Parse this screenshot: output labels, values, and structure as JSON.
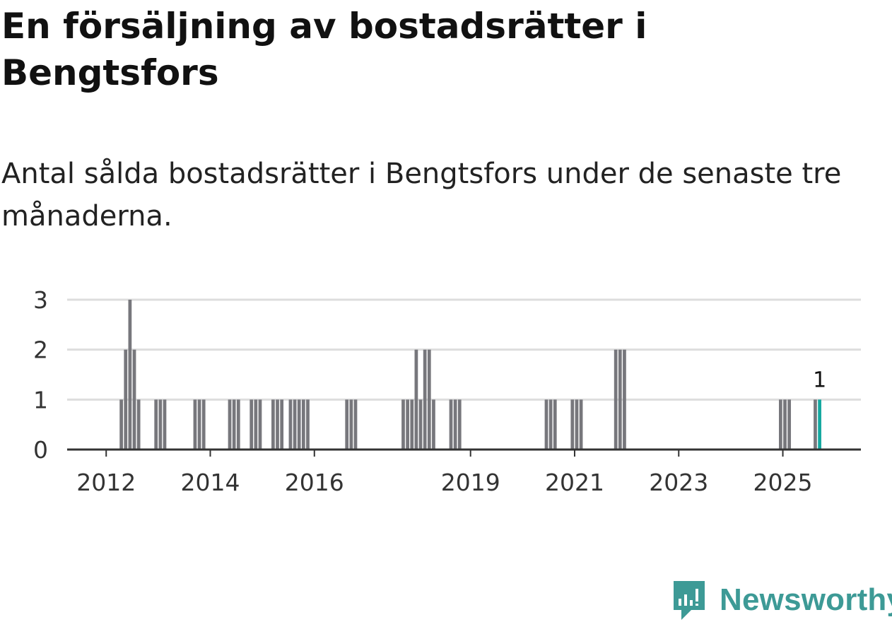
{
  "title": "En försäljning av bostadsrätter i Bengtsfors",
  "subtitle": "Antal sålda bostadsrätter i Bengtsfors under de senaste tre månaderna.",
  "brand": {
    "name": "Newsworthy",
    "icon": "newsworthy-logo-icon",
    "color": "#3d9a96"
  },
  "colors": {
    "bar": "#77777c",
    "highlight": "#14a8a0",
    "grid": "#dddddd",
    "axis": "#333333"
  },
  "chart_data": {
    "type": "bar",
    "title": "En försäljning av bostadsrätter i Bengtsfors",
    "subtitle": "Antal sålda bostadsrätter i Bengtsfors under de senaste tre månaderna.",
    "xlabel": "",
    "ylabel": "",
    "ylim": [
      0,
      3
    ],
    "yticks": [
      0,
      1,
      2,
      3
    ],
    "xlim": [
      2011.25,
      2026.5
    ],
    "xticks": [
      {
        "value": 2012,
        "label": "2012"
      },
      {
        "value": 2014,
        "label": "2014"
      },
      {
        "value": 2016,
        "label": "2016"
      },
      {
        "value": 2019,
        "label": "2019"
      },
      {
        "value": 2021,
        "label": "2021"
      },
      {
        "value": 2023,
        "label": "2023"
      },
      {
        "value": 2025,
        "label": "2025"
      }
    ],
    "grid": true,
    "bar_width_months": 1,
    "series": [
      {
        "name": "Antal sålda bostadsrätter",
        "points": [
          {
            "x": "2012-04",
            "y": 1
          },
          {
            "x": "2012-05",
            "y": 2
          },
          {
            "x": "2012-06",
            "y": 3
          },
          {
            "x": "2012-07",
            "y": 2
          },
          {
            "x": "2012-08",
            "y": 1
          },
          {
            "x": "2012-12",
            "y": 1
          },
          {
            "x": "2013-01",
            "y": 1
          },
          {
            "x": "2013-02",
            "y": 1
          },
          {
            "x": "2013-09",
            "y": 1
          },
          {
            "x": "2013-10",
            "y": 1
          },
          {
            "x": "2013-11",
            "y": 1
          },
          {
            "x": "2014-05",
            "y": 1
          },
          {
            "x": "2014-06",
            "y": 1
          },
          {
            "x": "2014-07",
            "y": 1
          },
          {
            "x": "2014-10",
            "y": 1
          },
          {
            "x": "2014-11",
            "y": 1
          },
          {
            "x": "2014-12",
            "y": 1
          },
          {
            "x": "2015-03",
            "y": 1
          },
          {
            "x": "2015-04",
            "y": 1
          },
          {
            "x": "2015-05",
            "y": 1
          },
          {
            "x": "2015-07",
            "y": 1
          },
          {
            "x": "2015-08",
            "y": 1
          },
          {
            "x": "2015-09",
            "y": 1
          },
          {
            "x": "2015-10",
            "y": 1
          },
          {
            "x": "2015-11",
            "y": 1
          },
          {
            "x": "2016-08",
            "y": 1
          },
          {
            "x": "2016-09",
            "y": 1
          },
          {
            "x": "2016-10",
            "y": 1
          },
          {
            "x": "2017-09",
            "y": 1
          },
          {
            "x": "2017-10",
            "y": 1
          },
          {
            "x": "2017-11",
            "y": 1
          },
          {
            "x": "2017-12",
            "y": 2
          },
          {
            "x": "2018-01",
            "y": 1
          },
          {
            "x": "2018-02",
            "y": 2
          },
          {
            "x": "2018-03",
            "y": 2
          },
          {
            "x": "2018-04",
            "y": 1
          },
          {
            "x": "2018-08",
            "y": 1
          },
          {
            "x": "2018-09",
            "y": 1
          },
          {
            "x": "2018-10",
            "y": 1
          },
          {
            "x": "2020-06",
            "y": 1
          },
          {
            "x": "2020-07",
            "y": 1
          },
          {
            "x": "2020-08",
            "y": 1
          },
          {
            "x": "2020-12",
            "y": 1
          },
          {
            "x": "2021-01",
            "y": 1
          },
          {
            "x": "2021-02",
            "y": 1
          },
          {
            "x": "2021-10",
            "y": 2
          },
          {
            "x": "2021-11",
            "y": 2
          },
          {
            "x": "2021-12",
            "y": 2
          },
          {
            "x": "2024-12",
            "y": 1
          },
          {
            "x": "2025-01",
            "y": 1
          },
          {
            "x": "2025-02",
            "y": 1
          },
          {
            "x": "2025-08",
            "y": 1
          },
          {
            "x": "2025-09",
            "y": 1
          }
        ]
      }
    ],
    "highlight": {
      "x": "2025-09",
      "y": 1,
      "label": "1"
    }
  }
}
